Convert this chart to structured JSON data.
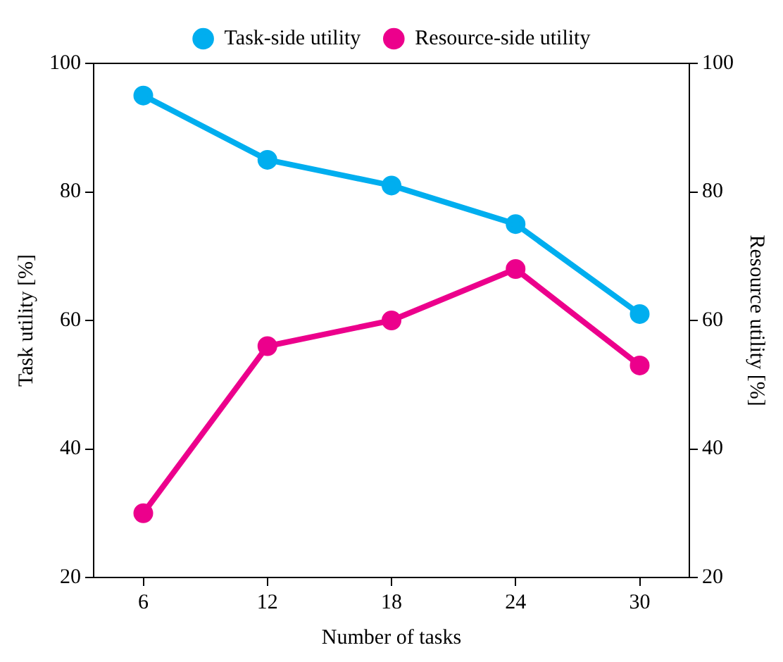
{
  "chart_data": {
    "type": "line",
    "xlabel": "Number of tasks",
    "ylabel": "Task utility [%]",
    "y2label": "Resource utility [%]",
    "x": [
      6,
      12,
      18,
      24,
      30
    ],
    "series": [
      {
        "name": "Task-side utility",
        "color": "#00aeef",
        "values": [
          95,
          85,
          81,
          75,
          61
        ]
      },
      {
        "name": "Resource-side utility",
        "color": "#ec008c",
        "values": [
          30,
          56,
          60,
          68,
          53
        ],
        "axis": "y2"
      }
    ],
    "xlim": [
      3.6,
      32.4
    ],
    "xticks": [
      6,
      12,
      18,
      24,
      30
    ],
    "ylim": [
      20,
      100
    ],
    "yticks": [
      20,
      40,
      60,
      80,
      100
    ],
    "y2lim": [
      20,
      100
    ],
    "y2ticks": [
      20,
      40,
      60,
      80,
      100
    ],
    "legend": "top",
    "marker": "circle",
    "line_style": "solid",
    "grid": false
  }
}
